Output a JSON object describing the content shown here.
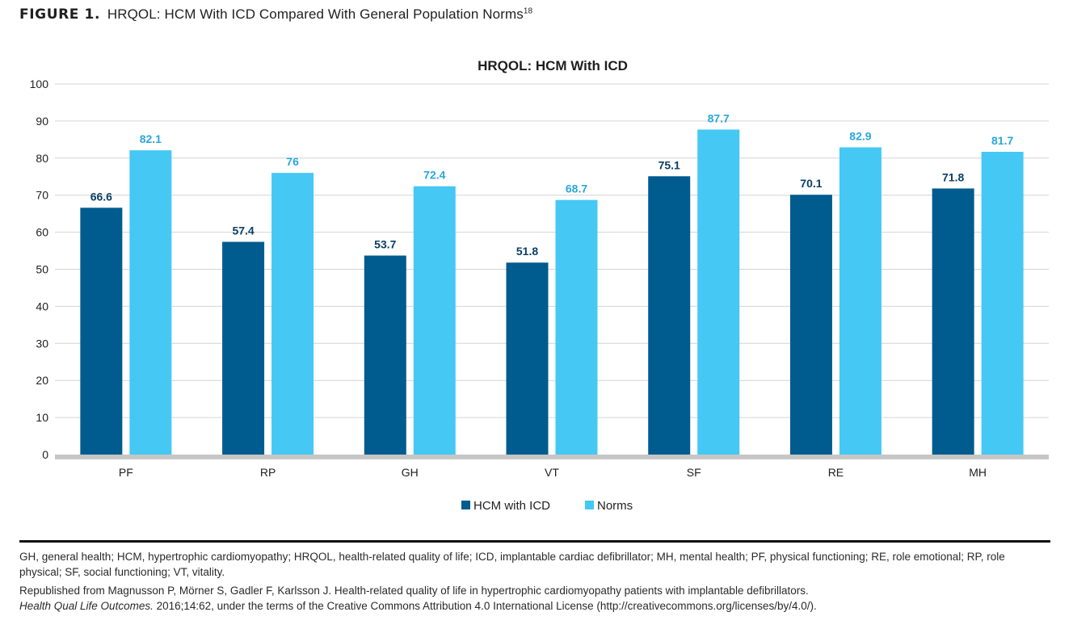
{
  "figure": {
    "label": "FIGURE 1.",
    "title": "HRQOL: HCM With ICD Compared With General Population Norms",
    "reference": "18"
  },
  "chart_data": {
    "type": "bar",
    "title": "HRQOL: HCM With ICD",
    "categories": [
      "PF",
      "RP",
      "GH",
      "VT",
      "SF",
      "RE",
      "MH"
    ],
    "series": [
      {
        "name": "HCM with ICD",
        "color": "#005b8f",
        "values": [
          66.6,
          57.4,
          53.7,
          51.8,
          75.1,
          70.1,
          71.8
        ],
        "labels": [
          "66.6",
          "57.4",
          "53.7",
          "51.8",
          "75.1",
          "70.1",
          "71.8"
        ]
      },
      {
        "name": "Norms",
        "color": "#45c8f3",
        "values": [
          82.1,
          76,
          72.4,
          68.7,
          87.7,
          82.9,
          81.7
        ],
        "labels": [
          "82.1",
          "76",
          "72.4",
          "68.7",
          "87.7",
          "82.9",
          "81.7"
        ]
      }
    ],
    "ylim": [
      0,
      100
    ],
    "yticks": [
      "0",
      "10",
      "20",
      "30",
      "40",
      "50",
      "60",
      "70",
      "80",
      "90",
      "100"
    ],
    "grid": true,
    "legend": "bottom-center",
    "xlabel": "",
    "ylabel": ""
  },
  "footnotes": {
    "abbreviations": "GH, general health; HCM, hypertrophic cardiomyopathy; HRQOL, health-related quality of life; ICD, implantable cardiac defibrillator; MH, mental health; PF, physical functioning; RE, role emotional; RP, role physical; SF, social functioning; VT, vitality.",
    "credit_line1": "Republished from Magnusson P, Mörner S, Gadler F, Karlsson J. Health-related quality of life in hypertrophic cardiomyopathy patients with implantable defibrillators.",
    "credit_journal": "Health Qual Life Outcomes.",
    "credit_line2_rest": " 2016;14:62, under the terms of the Creative Commons Attribution 4.0 International License (http://creativecommons.org/licenses/by/4.0/)."
  }
}
